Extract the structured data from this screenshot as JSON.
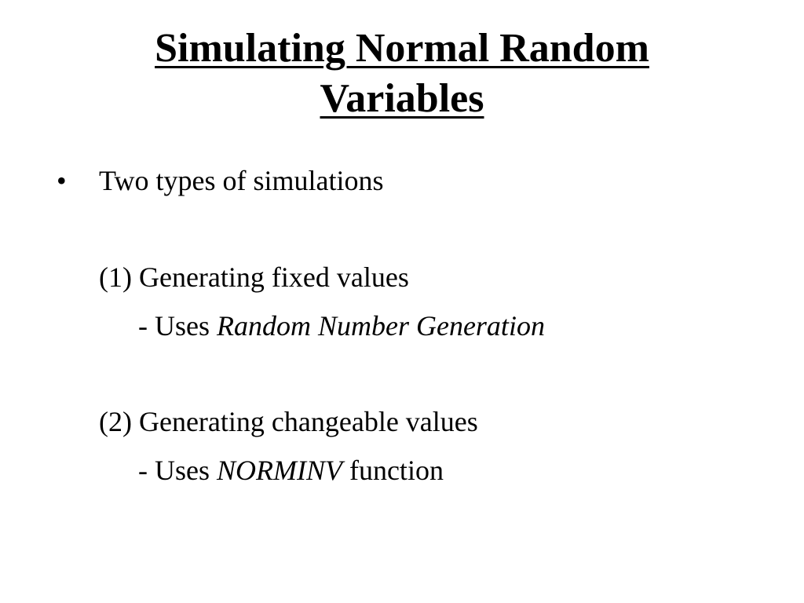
{
  "slide": {
    "title_line1": "Simulating Normal Random",
    "title_line2": "Variables",
    "bullet": "Two types of simulations",
    "item1": "(1) Generating fixed values",
    "item1_sub_prefix": "- Uses ",
    "item1_sub_em": "Random Number Generation",
    "item2": "(2) Generating changeable values",
    "item2_sub_prefix": "- Uses ",
    "item2_sub_em": "NORMINV",
    "item2_sub_suffix": " function"
  }
}
